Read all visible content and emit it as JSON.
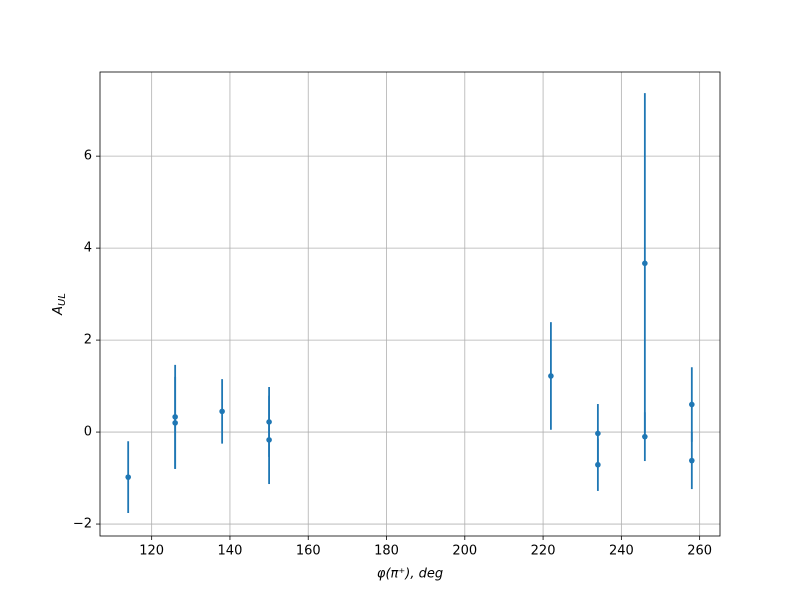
{
  "chart_data": {
    "type": "errorbar",
    "xlabel": "φ(π⁺), deg",
    "ylabel": "A",
    "ylabel_sub": "UL",
    "x": [
      114,
      126,
      126,
      138,
      150,
      150,
      222,
      234,
      234,
      246,
      246,
      258,
      258
    ],
    "series": [
      {
        "color": "#1f77b4",
        "values": [
          -0.98,
          0.33,
          0.2,
          0.45,
          0.22,
          -0.17,
          1.22,
          -0.03,
          -0.71,
          3.67,
          -0.1,
          0.6,
          -0.62
        ],
        "errors": [
          0.78,
          1.13,
          1.0,
          0.7,
          0.76,
          0.96,
          1.17,
          0.64,
          0.57,
          3.7,
          0.53,
          0.81,
          0.62
        ]
      }
    ],
    "xlim": [
      106.8,
      265.2
    ],
    "ylim": [
      -2.26,
      7.83
    ],
    "xticks": [
      120,
      140,
      160,
      180,
      200,
      220,
      240,
      260
    ],
    "yticks": [
      {
        "value": -2,
        "label": "−2"
      },
      0,
      2,
      4,
      6
    ],
    "grid": true
  }
}
